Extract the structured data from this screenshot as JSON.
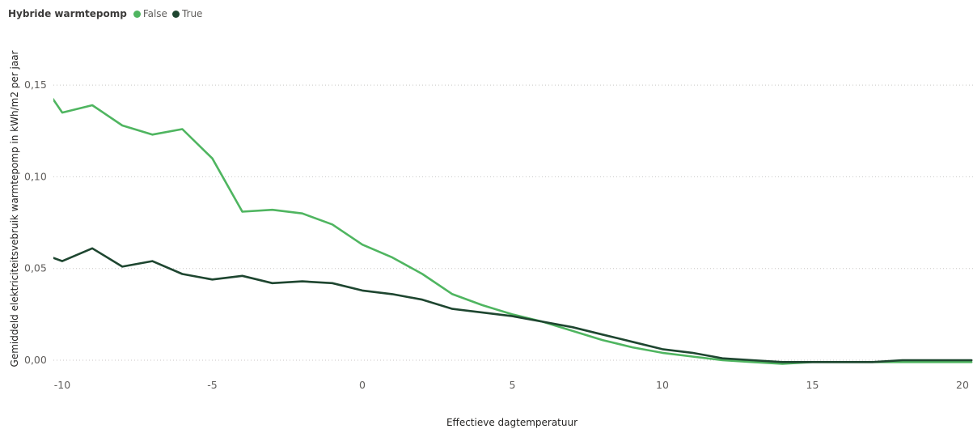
{
  "legend": {
    "title": "Hybride warmtepomp",
    "items": [
      {
        "label": "False",
        "color": "#4fb560"
      },
      {
        "label": "True",
        "color": "#1e4630"
      }
    ]
  },
  "chart_data": {
    "type": "line",
    "title": "",
    "xlabel": "Effectieve dagtemperatuur",
    "ylabel": "Gemiddeld elektriciteitsvebruik warmtepomp in kWh/m2 per jaar",
    "xlim": [
      -10.3,
      20.3
    ],
    "ylim": [
      -0.012,
      0.175
    ],
    "x_ticks": [
      -10,
      -5,
      0,
      5,
      10,
      15,
      20
    ],
    "x_tick_labels": [
      "-10",
      "-5",
      "0",
      "5",
      "10",
      "15",
      "20"
    ],
    "y_ticks": [
      0.0,
      0.05,
      0.1,
      0.15
    ],
    "y_tick_labels": [
      "0,00",
      "0,05",
      "0,10",
      "0,15"
    ],
    "grid": "horizontal dotted",
    "legend_position": "top-left",
    "series": [
      {
        "name": "False",
        "color": "#4fb560",
        "x": [
          -10.5,
          -10,
          -9,
          -8,
          -7,
          -6,
          -5,
          -4,
          -3,
          -2,
          -1,
          0,
          1,
          2,
          3,
          4,
          5,
          6,
          7,
          8,
          9,
          10,
          11,
          12,
          13,
          14,
          15,
          16,
          17,
          18,
          19,
          20,
          20.3
        ],
        "y": [
          0.147,
          0.135,
          0.139,
          0.128,
          0.123,
          0.126,
          0.11,
          0.081,
          0.082,
          0.08,
          0.074,
          0.063,
          0.056,
          0.047,
          0.036,
          0.03,
          0.025,
          0.021,
          0.016,
          0.011,
          0.007,
          0.004,
          0.002,
          0.0,
          -0.001,
          -0.002,
          -0.001,
          -0.001,
          -0.001,
          -0.001,
          -0.001,
          -0.001,
          -0.001
        ]
      },
      {
        "name": "True",
        "color": "#1e4630",
        "x": [
          -10.5,
          -10,
          -9,
          -8,
          -7,
          -6,
          -5,
          -4,
          -3,
          -2,
          -1,
          0,
          1,
          2,
          3,
          4,
          5,
          6,
          7,
          8,
          9,
          10,
          11,
          12,
          13,
          14,
          15,
          16,
          17,
          18,
          19,
          20,
          20.3
        ],
        "y": [
          0.057,
          0.054,
          0.061,
          0.051,
          0.054,
          0.047,
          0.044,
          0.046,
          0.042,
          0.043,
          0.042,
          0.038,
          0.036,
          0.033,
          0.028,
          0.026,
          0.024,
          0.021,
          0.018,
          0.014,
          0.01,
          0.006,
          0.004,
          0.001,
          0.0,
          -0.001,
          -0.001,
          -0.001,
          -0.001,
          0.0,
          0.0,
          0.0,
          0.0
        ]
      }
    ]
  }
}
